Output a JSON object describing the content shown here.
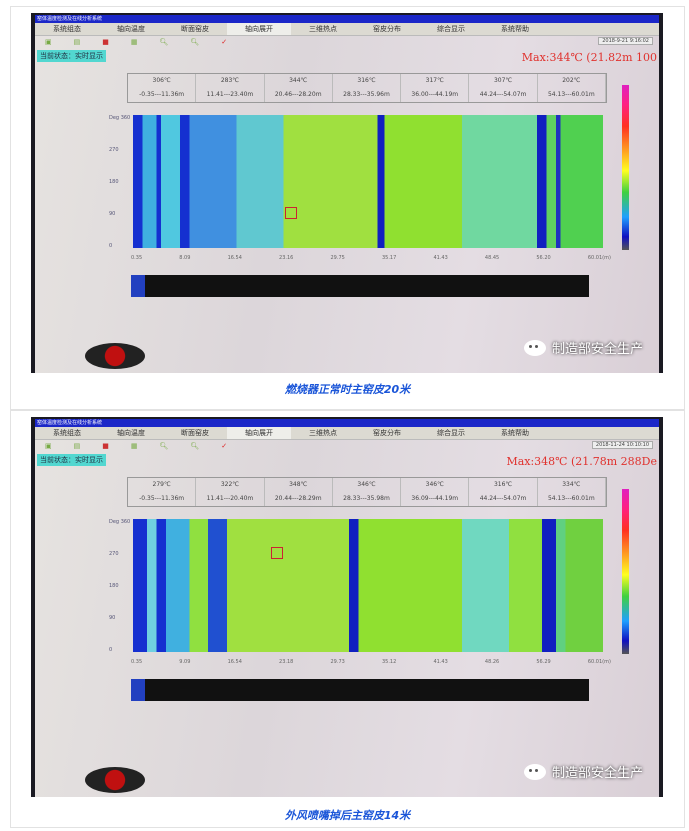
{
  "tabs": [
    "系统组态",
    "轴向温度",
    "断面窑皮",
    "轴向展开",
    "三维热点",
    "窑皮分布",
    "综合显示",
    "系统帮助"
  ],
  "title_bar": "窑体温度检测及在线分析系统",
  "status": "当前状态：实时显示",
  "watermark": "制造部安全生产",
  "figures": [
    {
      "clock": "2018-9-21 9:16:02",
      "max": "Max:344℃ (21.82m 100",
      "temps": [
        "306℃",
        "283℃",
        "344℃",
        "316℃",
        "317℃",
        "307℃",
        "202℃"
      ],
      "ranges": [
        "-0.35---11.36m",
        "11.41---23.40m",
        "20.46---28.20m",
        "28.33---35.96m",
        "36.00---44.19m",
        "44.24---54.07m",
        "54.13---60.01m"
      ],
      "x_ticks": [
        "0.35",
        "8.09",
        "16.54",
        "23.16",
        "29.75",
        "35.17",
        "41.43",
        "48.45",
        "56.20",
        "60.01(m)"
      ],
      "y_ticks": [
        "Deg 360",
        "270",
        "180",
        "90",
        "0"
      ],
      "caption": "燃烧器正常时主窑皮20米"
    },
    {
      "clock": "2018-11-24 10:10:10",
      "max": "Max:348℃ (21.78m 288De",
      "temps": [
        "279℃",
        "322℃",
        "348℃",
        "346℃",
        "346℃",
        "316℃",
        "334℃"
      ],
      "ranges": [
        "-0.35---11.36m",
        "11.41---20.40m",
        "20.44---28.29m",
        "28.33---35.98m",
        "36.09---44.19m",
        "44.24---54.07m",
        "54.13---60.01m"
      ],
      "x_ticks": [
        "0.35",
        "9.09",
        "16.54",
        "23.18",
        "29.73",
        "35.12",
        "41.43",
        "48.26",
        "56.29",
        "60.01(m)"
      ],
      "y_ticks": [
        "Deg 360",
        "270",
        "180",
        "90",
        "0"
      ],
      "caption": "外风喷嘴掉后主窑皮14米"
    }
  ],
  "colors": {
    "caption": "#1a55d8",
    "max": "#e0322e",
    "titlebar": "#1b27c8"
  }
}
